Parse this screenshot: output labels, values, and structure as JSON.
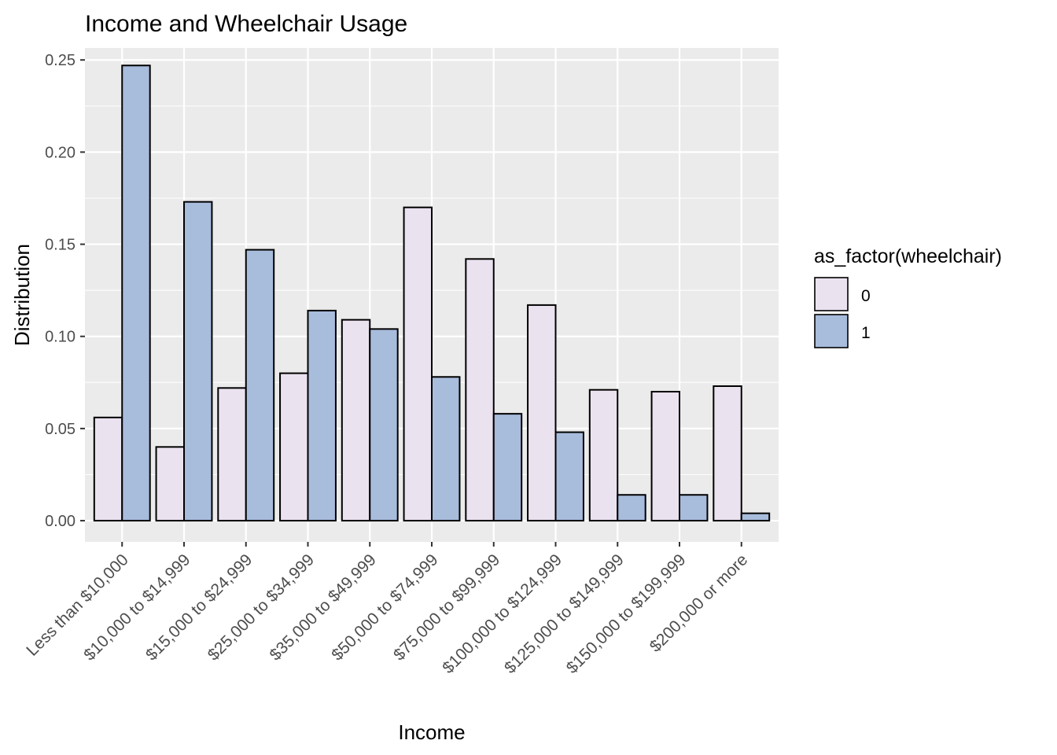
{
  "chart_data": {
    "type": "bar",
    "title": "Income and Wheelchair Usage",
    "xlabel": "Income",
    "ylabel": "Distribution",
    "ylim": [
      -0.0115,
      0.2565
    ],
    "yticks": [
      0.0,
      0.05,
      0.1,
      0.15,
      0.2,
      0.25
    ],
    "ytick_labels": [
      "0.00",
      "0.05",
      "0.10",
      "0.15",
      "0.20",
      "0.25"
    ],
    "categories": [
      "Less than $10,000",
      "$10,000 to $14,999",
      "$15,000 to $24,999",
      "$25,000 to $34,999",
      "$35,000 to $49,999",
      "$50,000 to $74,999",
      "$75,000 to $99,999",
      "$100,000 to $124,999",
      "$125,000 to $149,999",
      "$150,000 to $199,999",
      "$200,000 or more"
    ],
    "legend_title": "as_factor(wheelchair)",
    "legend_position": "right",
    "grid": true,
    "series": [
      {
        "name": "0",
        "color": "#ebe2f0",
        "values": [
          0.056,
          0.04,
          0.072,
          0.08,
          0.109,
          0.17,
          0.142,
          0.117,
          0.071,
          0.07,
          0.073
        ]
      },
      {
        "name": "1",
        "color": "#a8bcdc",
        "values": [
          0.247,
          0.173,
          0.147,
          0.114,
          0.104,
          0.078,
          0.058,
          0.048,
          0.014,
          0.014,
          0.004
        ]
      }
    ]
  }
}
